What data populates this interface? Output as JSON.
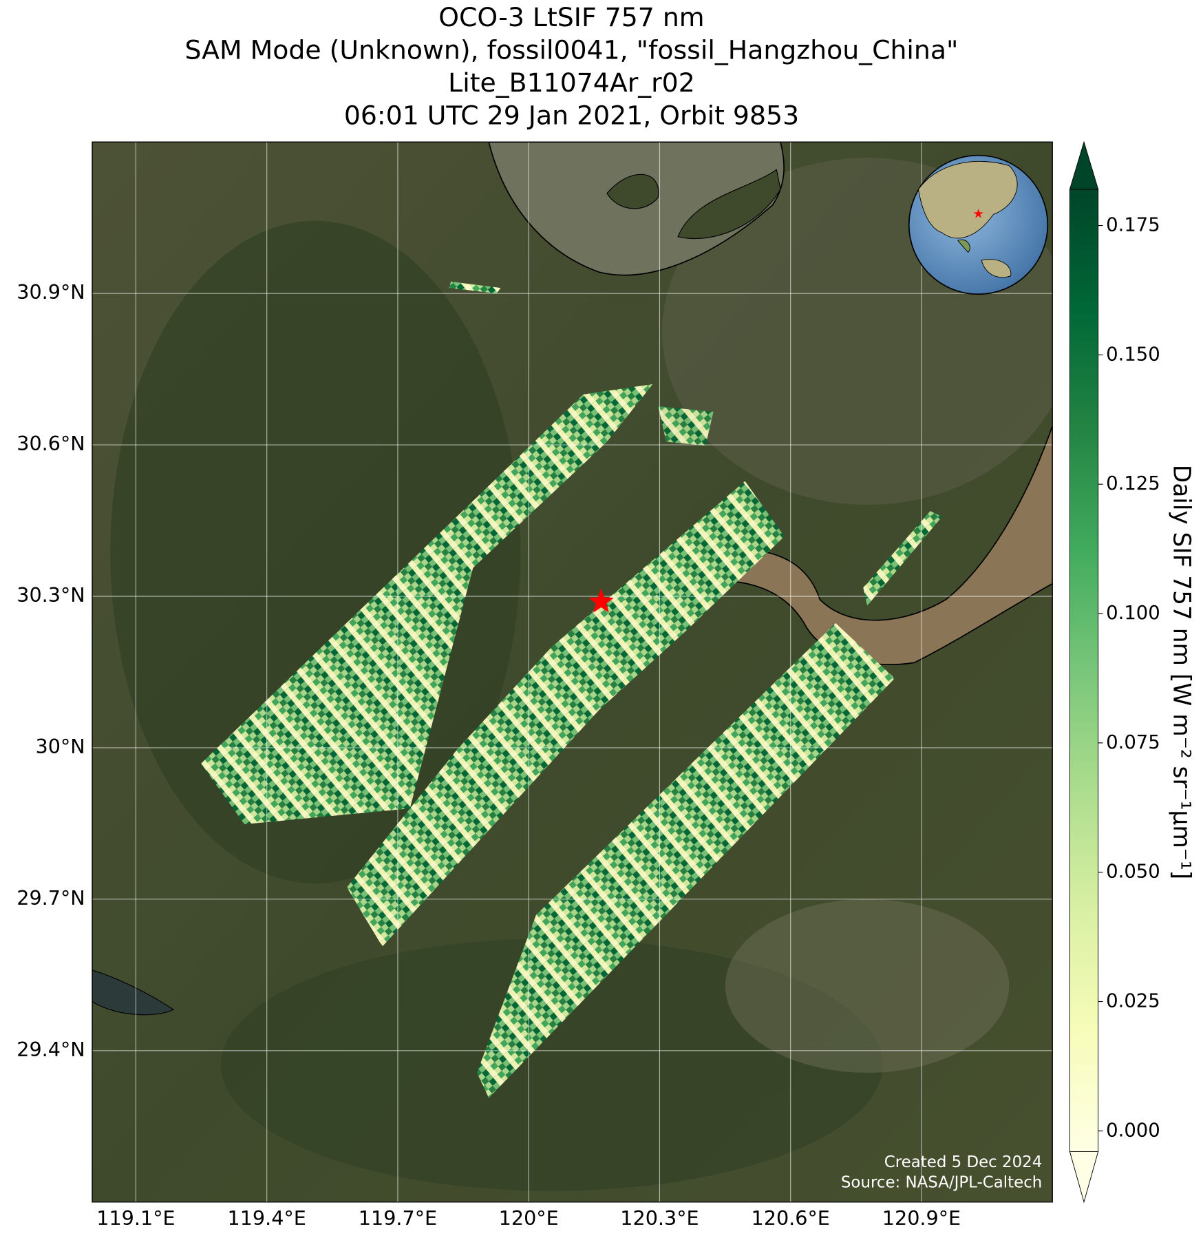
{
  "chart_data": {
    "type": "map",
    "title": [
      "OCO-3 LtSIF 757 nm",
      "SAM Mode (Unknown), fossil0041, \"fossil_Hangzhou_China\"",
      "Lite_B11074Ar_r02",
      "06:01 UTC 29 Jan 2021, Orbit 9853"
    ],
    "xlim": [
      119.0,
      121.2
    ],
    "ylim": [
      29.1,
      31.2
    ],
    "xticks": [
      {
        "value": 119.1,
        "label": "119.1°E"
      },
      {
        "value": 119.4,
        "label": "119.4°E"
      },
      {
        "value": 119.7,
        "label": "119.7°E"
      },
      {
        "value": 120.0,
        "label": "120°E"
      },
      {
        "value": 120.3,
        "label": "120.3°E"
      },
      {
        "value": 120.6,
        "label": "120.6°E"
      },
      {
        "value": 120.9,
        "label": "120.9°E"
      }
    ],
    "yticks": [
      {
        "value": 29.4,
        "label": "29.4°N"
      },
      {
        "value": 29.7,
        "label": "29.7°N"
      },
      {
        "value": 30.0,
        "label": "30°N"
      },
      {
        "value": 30.3,
        "label": "30.3°N"
      },
      {
        "value": 30.6,
        "label": "30.6°N"
      },
      {
        "value": 30.9,
        "label": "30.9°N"
      }
    ],
    "grid": true,
    "target": {
      "lon": 120.166,
      "lat": 30.289,
      "color": "#ff0000"
    },
    "colorbar": {
      "label": "Daily SIF 757 nm [W m⁻² sr⁻¹μm⁻¹]",
      "colormap": "YlGn",
      "clim": [
        -0.004,
        0.182
      ],
      "extend": "both",
      "ticks": [
        {
          "value": 0.0,
          "label": "0.000"
        },
        {
          "value": 0.025,
          "label": "0.025"
        },
        {
          "value": 0.05,
          "label": "0.050"
        },
        {
          "value": 0.075,
          "label": "0.075"
        },
        {
          "value": 0.1,
          "label": "0.100"
        },
        {
          "value": 0.125,
          "label": "0.125"
        },
        {
          "value": 0.15,
          "label": "0.150"
        },
        {
          "value": 0.175,
          "label": "0.175"
        }
      ]
    },
    "credits": [
      "Created 5 Dec 2024",
      "Source: NASA/JPL-Caltech"
    ]
  }
}
